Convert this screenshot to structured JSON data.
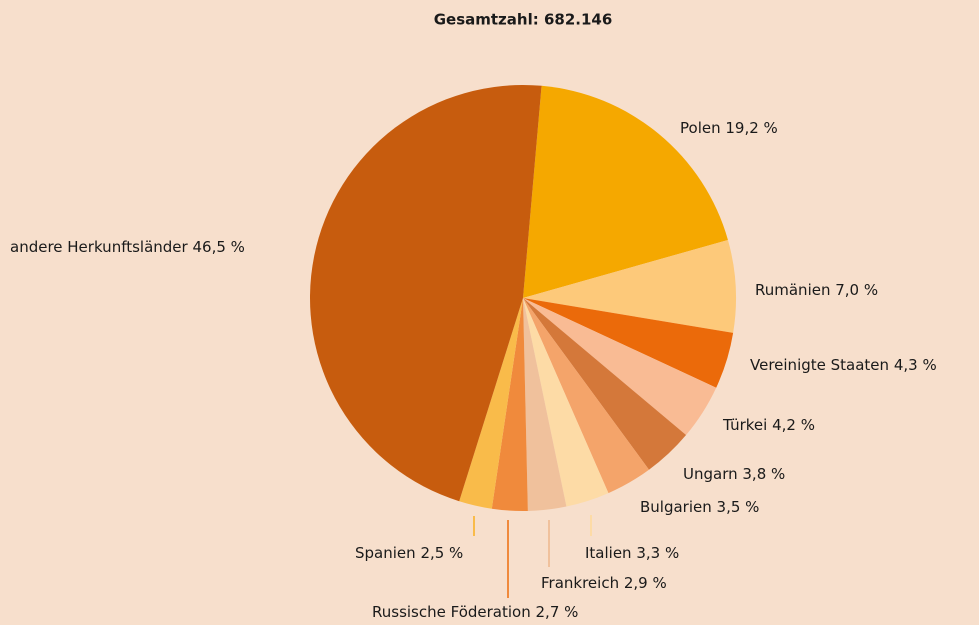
{
  "chart_data": {
    "type": "pie",
    "title": "Gesamtzahl: 682.146",
    "categories": [
      "Polen",
      "Rumänien",
      "Vereinigte Staaten",
      "Türkei",
      "Ungarn",
      "Bulgarien",
      "Italien",
      "Frankreich",
      "Russische Föderation",
      "Spanien",
      "andere Herkunftsländer"
    ],
    "values": [
      19.2,
      7.0,
      4.3,
      4.2,
      3.8,
      3.5,
      3.3,
      2.9,
      2.7,
      2.5,
      46.5
    ],
    "value_labels": [
      "19,2 %",
      "7,0 %",
      "4,3 %",
      "4,2 %",
      "3,8 %",
      "3,5 %",
      "3,3 %",
      "2,9 %",
      "2,7 %",
      "2,5 %",
      "46,5 %"
    ],
    "colors": [
      "#f5a800",
      "#fdc97a",
      "#eb6a0a",
      "#f9bb94",
      "#d4783a",
      "#f4a46a",
      "#fddba6",
      "#f0c19c",
      "#f08a3c",
      "#f9bb4a",
      "#c75c0e"
    ]
  }
}
